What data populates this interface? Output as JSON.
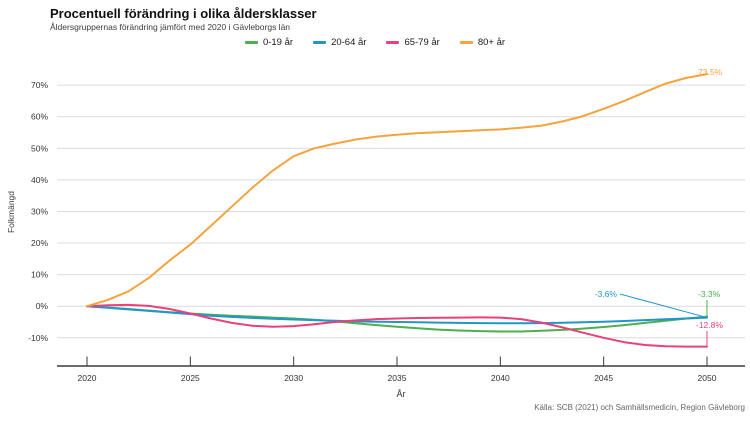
{
  "header": {
    "title": "Procentuell förändring i olika åldersklasser",
    "subtitle": "Åldersgruppernas förändring jämfört med 2020 i Gävleborgs län"
  },
  "legend": {
    "items": [
      {
        "label": "0-19 år",
        "color": "#4CB050"
      },
      {
        "label": "20-64 år",
        "color": "#2196C8"
      },
      {
        "label": "65-79 år",
        "color": "#E8417C"
      },
      {
        "label": "80+ år",
        "color": "#F5A33C"
      }
    ]
  },
  "footer": {
    "source": "Källa: SCB (2021) och Samhällsmedicin, Region Gävleborg"
  },
  "chart_data": {
    "type": "line",
    "title": "Procentuell förändring i olika åldersklasser",
    "subtitle": "Åldersgruppernas förändring jämfört med 2020 i Gävleborgs län",
    "xlabel": "År",
    "ylabel": "Folkmängd",
    "x_ticks": [
      2020,
      2025,
      2030,
      2035,
      2040,
      2045,
      2050
    ],
    "y_ticks": [
      70,
      60,
      50,
      40,
      30,
      20,
      10,
      0,
      -10
    ],
    "ylim": [
      -15,
      76
    ],
    "xlim": [
      2020,
      2050
    ],
    "grid": "horizontal",
    "legend_position": "top-center",
    "x": [
      2020,
      2021,
      2022,
      2023,
      2024,
      2025,
      2026,
      2027,
      2028,
      2029,
      2030,
      2031,
      2032,
      2033,
      2034,
      2035,
      2036,
      2037,
      2038,
      2039,
      2040,
      2041,
      2042,
      2043,
      2044,
      2045,
      2046,
      2047,
      2048,
      2049,
      2050
    ],
    "series": [
      {
        "name": "0-19 år",
        "color": "#4CB050",
        "end_label": "-3.3%",
        "values": [
          0,
          -0.4,
          -0.9,
          -1.4,
          -1.9,
          -2.3,
          -2.7,
          -3.0,
          -3.3,
          -3.6,
          -3.9,
          -4.3,
          -4.8,
          -5.4,
          -6.0,
          -6.5,
          -7.0,
          -7.4,
          -7.7,
          -7.9,
          -8.0,
          -8.0,
          -7.8,
          -7.5,
          -7.1,
          -6.6,
          -6.0,
          -5.3,
          -4.6,
          -3.9,
          -3.3
        ]
      },
      {
        "name": "20-64 år",
        "color": "#2196C8",
        "end_label": "-3.6%",
        "values": [
          0,
          -0.5,
          -1.0,
          -1.5,
          -2.0,
          -2.5,
          -3.0,
          -3.4,
          -3.7,
          -4.0,
          -4.2,
          -4.4,
          -4.6,
          -4.8,
          -4.9,
          -5.0,
          -5.1,
          -5.2,
          -5.3,
          -5.35,
          -5.4,
          -5.4,
          -5.35,
          -5.25,
          -5.1,
          -4.9,
          -4.7,
          -4.4,
          -4.15,
          -3.9,
          -3.6
        ]
      },
      {
        "name": "65-79 år",
        "color": "#E8417C",
        "end_label": "-12.8%",
        "values": [
          0,
          0.3,
          0.4,
          0.1,
          -0.9,
          -2.3,
          -3.9,
          -5.3,
          -6.2,
          -6.5,
          -6.3,
          -5.7,
          -5.0,
          -4.5,
          -4.1,
          -3.9,
          -3.75,
          -3.65,
          -3.6,
          -3.55,
          -3.6,
          -4.1,
          -5.2,
          -6.7,
          -8.4,
          -10.0,
          -11.4,
          -12.3,
          -12.7,
          -12.8,
          -12.8
        ]
      },
      {
        "name": "80+ år",
        "color": "#F5A33C",
        "end_label": "73.5%",
        "values": [
          0,
          2,
          4.7,
          9,
          14.5,
          19.5,
          25.5,
          31.5,
          37.5,
          43,
          47.5,
          50,
          51.5,
          52.8,
          53.7,
          54.3,
          54.8,
          55.1,
          55.4,
          55.7,
          56,
          56.5,
          57.2,
          58.5,
          60.2,
          62.5,
          65,
          67.8,
          70.5,
          72.3,
          73.5
        ]
      }
    ],
    "source": "Källa: SCB (2021) och Samhällsmedicin, Region Gävleborg"
  }
}
